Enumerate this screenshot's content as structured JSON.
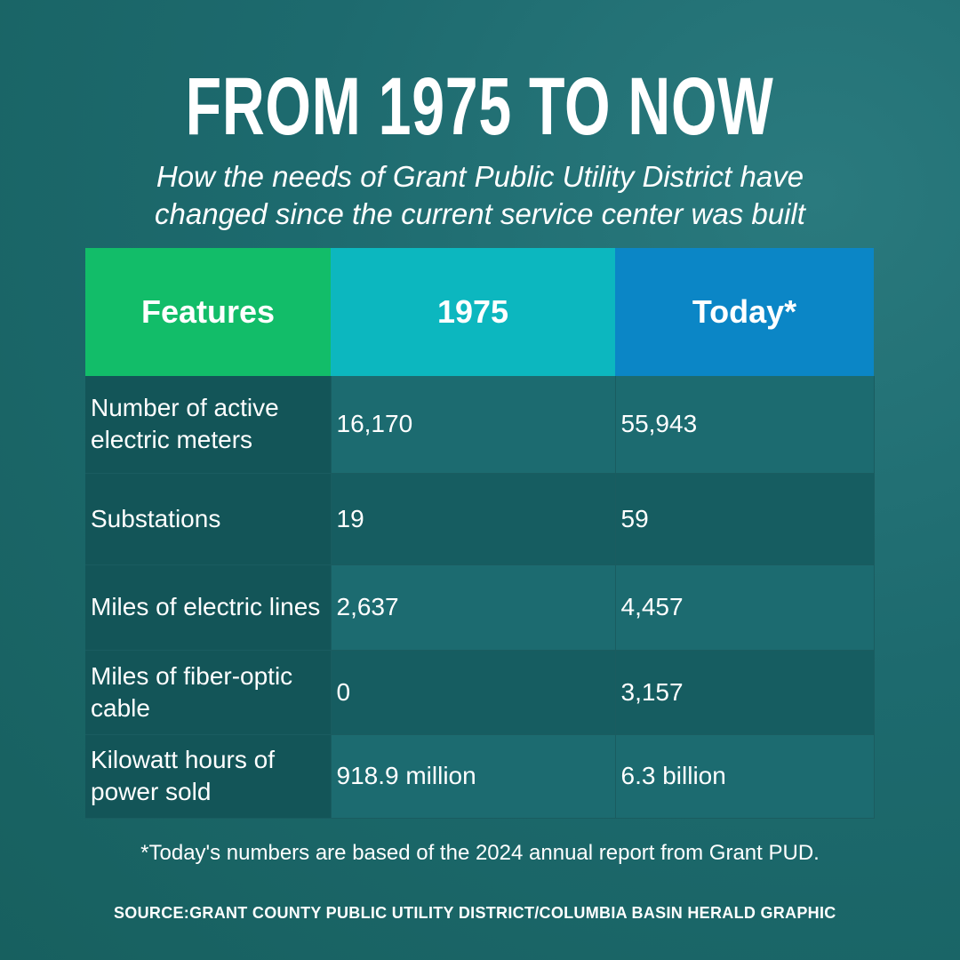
{
  "header": {
    "title": "FROM 1975 TO NOW",
    "subtitle": "How the needs of Grant Public Utility District have changed since the current service center was built"
  },
  "table": {
    "columns": [
      "Features",
      "1975",
      "Today*"
    ],
    "rows": [
      [
        "Number of active electric meters",
        "16,170",
        "55,943"
      ],
      [
        "Substations",
        "19",
        "59"
      ],
      [
        "Miles of electric lines",
        "2,637",
        "4,457"
      ],
      [
        "Miles of fiber-optic cable",
        "0",
        "3,157"
      ],
      [
        "Kilowatt hours of power sold",
        "918.9 million",
        "6.3 billion"
      ]
    ]
  },
  "footnote": "*Today's numbers are based of the 2024 annual report from Grant PUD.",
  "source": "SOURCE:GRANT COUNTY PUBLIC UTILITY DISTRICT/COLUMBIA BASIN HERALD GRAPHIC"
}
